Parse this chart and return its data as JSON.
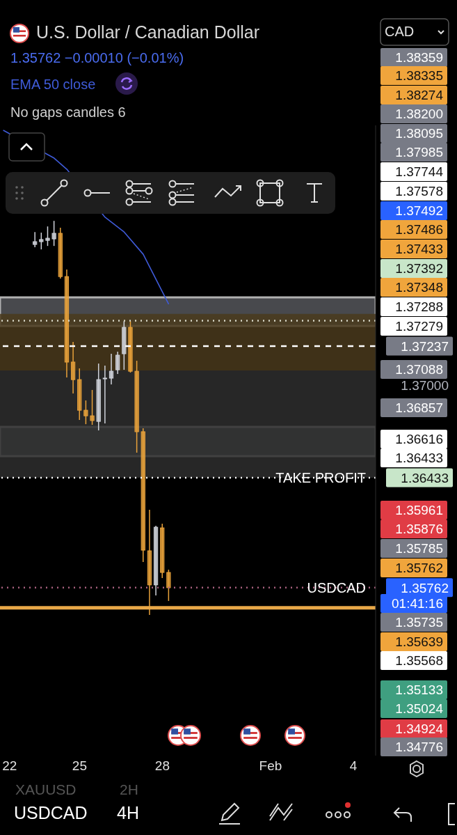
{
  "chart_data": {
    "type": "candlestick",
    "title": "U.S. Dollar / Canadian Dollar",
    "subtitle": "1.35762 −0.00010 (−0.01%)",
    "categories": [
      null,
      "22",
      null,
      null,
      null,
      null,
      null,
      null,
      null,
      null,
      null,
      null,
      "25",
      null,
      null,
      null,
      null,
      null,
      null,
      null,
      null,
      null,
      null,
      null,
      null,
      "28",
      null,
      null,
      null,
      null,
      null,
      null,
      null,
      null,
      null,
      null,
      null,
      null,
      null,
      null,
      null,
      null,
      "Feb",
      null,
      null,
      null,
      null,
      null,
      null,
      null,
      null,
      null,
      null,
      null,
      null,
      "4",
      null,
      null,
      null
    ],
    "ohlc": [
      null,
      null,
      null,
      null,
      null,
      [
        1.37857,
        1.37933,
        1.3784,
        1.37874
      ],
      [
        1.37874,
        1.37929,
        1.37827,
        1.37887
      ],
      [
        1.37882,
        1.37967,
        1.37848,
        1.37895
      ],
      [
        1.37891,
        1.38001,
        1.37848,
        1.37925
      ],
      [
        1.37925,
        1.37959,
        1.37649,
        1.37661
      ],
      [
        1.37661,
        1.37704,
        1.37045,
        1.37139
      ],
      [
        1.37139,
        1.37262,
        1.36947,
        1.37032
      ],
      [
        1.37032,
        1.371,
        1.36786,
        1.36845
      ],
      [
        1.36845,
        1.36905,
        1.3676,
        1.36811
      ],
      [
        1.36811,
        1.36969,
        1.36756,
        1.36782
      ],
      [
        1.36777,
        1.3713,
        1.36722,
        1.37032
      ],
      [
        1.37037,
        1.37117,
        1.36765,
        1.37041
      ],
      [
        1.37041,
        1.3719,
        1.37003,
        1.37083
      ],
      [
        1.37092,
        1.37202,
        1.37066,
        1.37181
      ],
      [
        1.3719,
        1.37389,
        1.37092,
        1.37351
      ],
      [
        1.37351,
        1.37389,
        1.37075,
        1.37083
      ],
      [
        1.37083,
        1.37147,
        1.36586,
        1.36714
      ],
      [
        1.36714,
        1.36735,
        1.35919,
        1.35991
      ],
      [
        1.35987,
        1.36238,
        1.35596,
        1.35779
      ],
      [
        1.35779,
        1.3614,
        1.35715,
        1.36131
      ],
      [
        1.36127,
        1.36153,
        1.35821,
        1.35855
      ],
      [
        1.35855,
        1.35872,
        1.35681,
        1.35762
      ],
      null,
      null,
      null,
      null,
      null,
      null,
      null,
      null,
      null,
      null,
      null,
      null,
      null,
      null,
      null,
      null,
      null,
      null,
      null,
      null,
      null,
      null,
      null,
      null,
      null,
      null,
      null,
      null,
      null,
      null,
      null,
      null
    ],
    "colors": [
      null,
      null,
      null,
      null,
      null,
      "#d1d4dc",
      "#d1d4dc",
      "#d1d4dc",
      "#d1d4dc",
      "#e9a23b",
      "#e9a23b",
      "#e9a23b",
      "#e9a23b",
      "#e9a23b",
      "#e9a23b",
      "#d1d4dc",
      "#d1d4dc",
      "#d1d4dc",
      "#d1d4dc",
      "#d1d4dc",
      "#e9a23b",
      "#e9a23b",
      "#e9a23b",
      "#e9a23b",
      "#d1d4dc",
      "#e9a23b",
      "#e9a23b",
      null,
      null,
      null,
      null,
      null,
      null,
      null,
      null,
      null,
      null,
      null,
      null,
      null,
      null,
      null,
      null,
      null,
      null,
      null,
      null,
      null,
      null,
      null,
      null,
      null,
      null,
      null,
      null,
      null,
      null,
      null,
      null
    ],
    "series": [
      {
        "name": "EMA 50 close",
        "type": "line",
        "color": "#3f5bd8",
        "values": [
          1.38554,
          null,
          null,
          null,
          null,
          null,
          null,
          null,
          1.38384,
          null,
          1.38316,
          null,
          null,
          null,
          null,
          null,
          1.38023,
          null,
          null,
          1.37933,
          null,
          null,
          1.37797,
          1.37721,
          null,
          null,
          1.37492,
          null,
          null,
          null,
          null,
          null,
          null,
          null,
          null,
          null,
          null,
          null,
          null,
          null,
          null,
          null,
          null,
          null,
          null,
          null,
          null,
          null,
          null,
          null,
          null,
          null,
          null,
          null,
          null,
          null,
          null,
          null,
          null
        ]
      }
    ],
    "ylim": [
      1.34737,
      1.38584
    ],
    "yticks": [
      {
        "value": 1.37237,
        "label": "1.37237"
      },
      {
        "value": 1.37,
        "label": "1.37000"
      },
      {
        "value": 1.36433,
        "label": "1.36433"
      },
      {
        "value": 1.35762,
        "label": "1.35762"
      }
    ],
    "ref_lines": [
      {
        "axis": "y",
        "value": 1.37392,
        "label": null,
        "color": "#d8d8c8",
        "line_style": "dotted"
      },
      {
        "axis": "y",
        "value": 1.37237,
        "label": null,
        "color": "#ffffff",
        "line_style": "dashed"
      },
      {
        "axis": "y",
        "value": 1.36433,
        "label": "TAKE PROFIT",
        "color": "#ffffff",
        "line_style": "dotted"
      },
      {
        "axis": "y",
        "value": 1.35762,
        "label": "USDCAD",
        "color": "#a8607f",
        "line_style": "dotted"
      },
      {
        "axis": "y",
        "value": 1.35639,
        "label": null,
        "color": "#e8a848",
        "line_style": "solid"
      }
    ],
    "bands": [
      {
        "axis": "y",
        "from": 1.3736,
        "to": 1.37534,
        "label": null,
        "color": "#55565a"
      },
      {
        "axis": "y",
        "from": 1.36565,
        "to": 1.36743,
        "label": null,
        "color": "#55565a"
      },
      {
        "axis": "y",
        "from": 1.37088,
        "to": 1.37433,
        "label": null,
        "color": "#4a3a1c"
      },
      {
        "axis": "y",
        "from": 1.36433,
        "to": 1.37088,
        "label": null,
        "color": "#2e2e2e"
      }
    ],
    "annotations": [
      "No gaps candles 6",
      "CAD",
      "USDCAD",
      "4H",
      "XAUUSD",
      "2H",
      "1.38359",
      "1.38335",
      "1.38274",
      "1.38200",
      "1.38095",
      "1.37985",
      "1.37744",
      "1.37578",
      "1.37492",
      "1.37486",
      "1.37433",
      "1.37392",
      "1.37348",
      "1.37288",
      "1.37279",
      "1.37088",
      "1.36857",
      "1.36616",
      "1.36433",
      "1.35961",
      "1.35876",
      "1.35785",
      "1.35762",
      "01:41:16",
      "1.35735",
      "1.35639",
      "1.35568",
      "1.35133",
      "1.35024",
      "1.34924",
      "1.34776"
    ],
    "legend": "top left",
    "grid": false,
    "marker": "none",
    "line_style": "solid"
  }
}
